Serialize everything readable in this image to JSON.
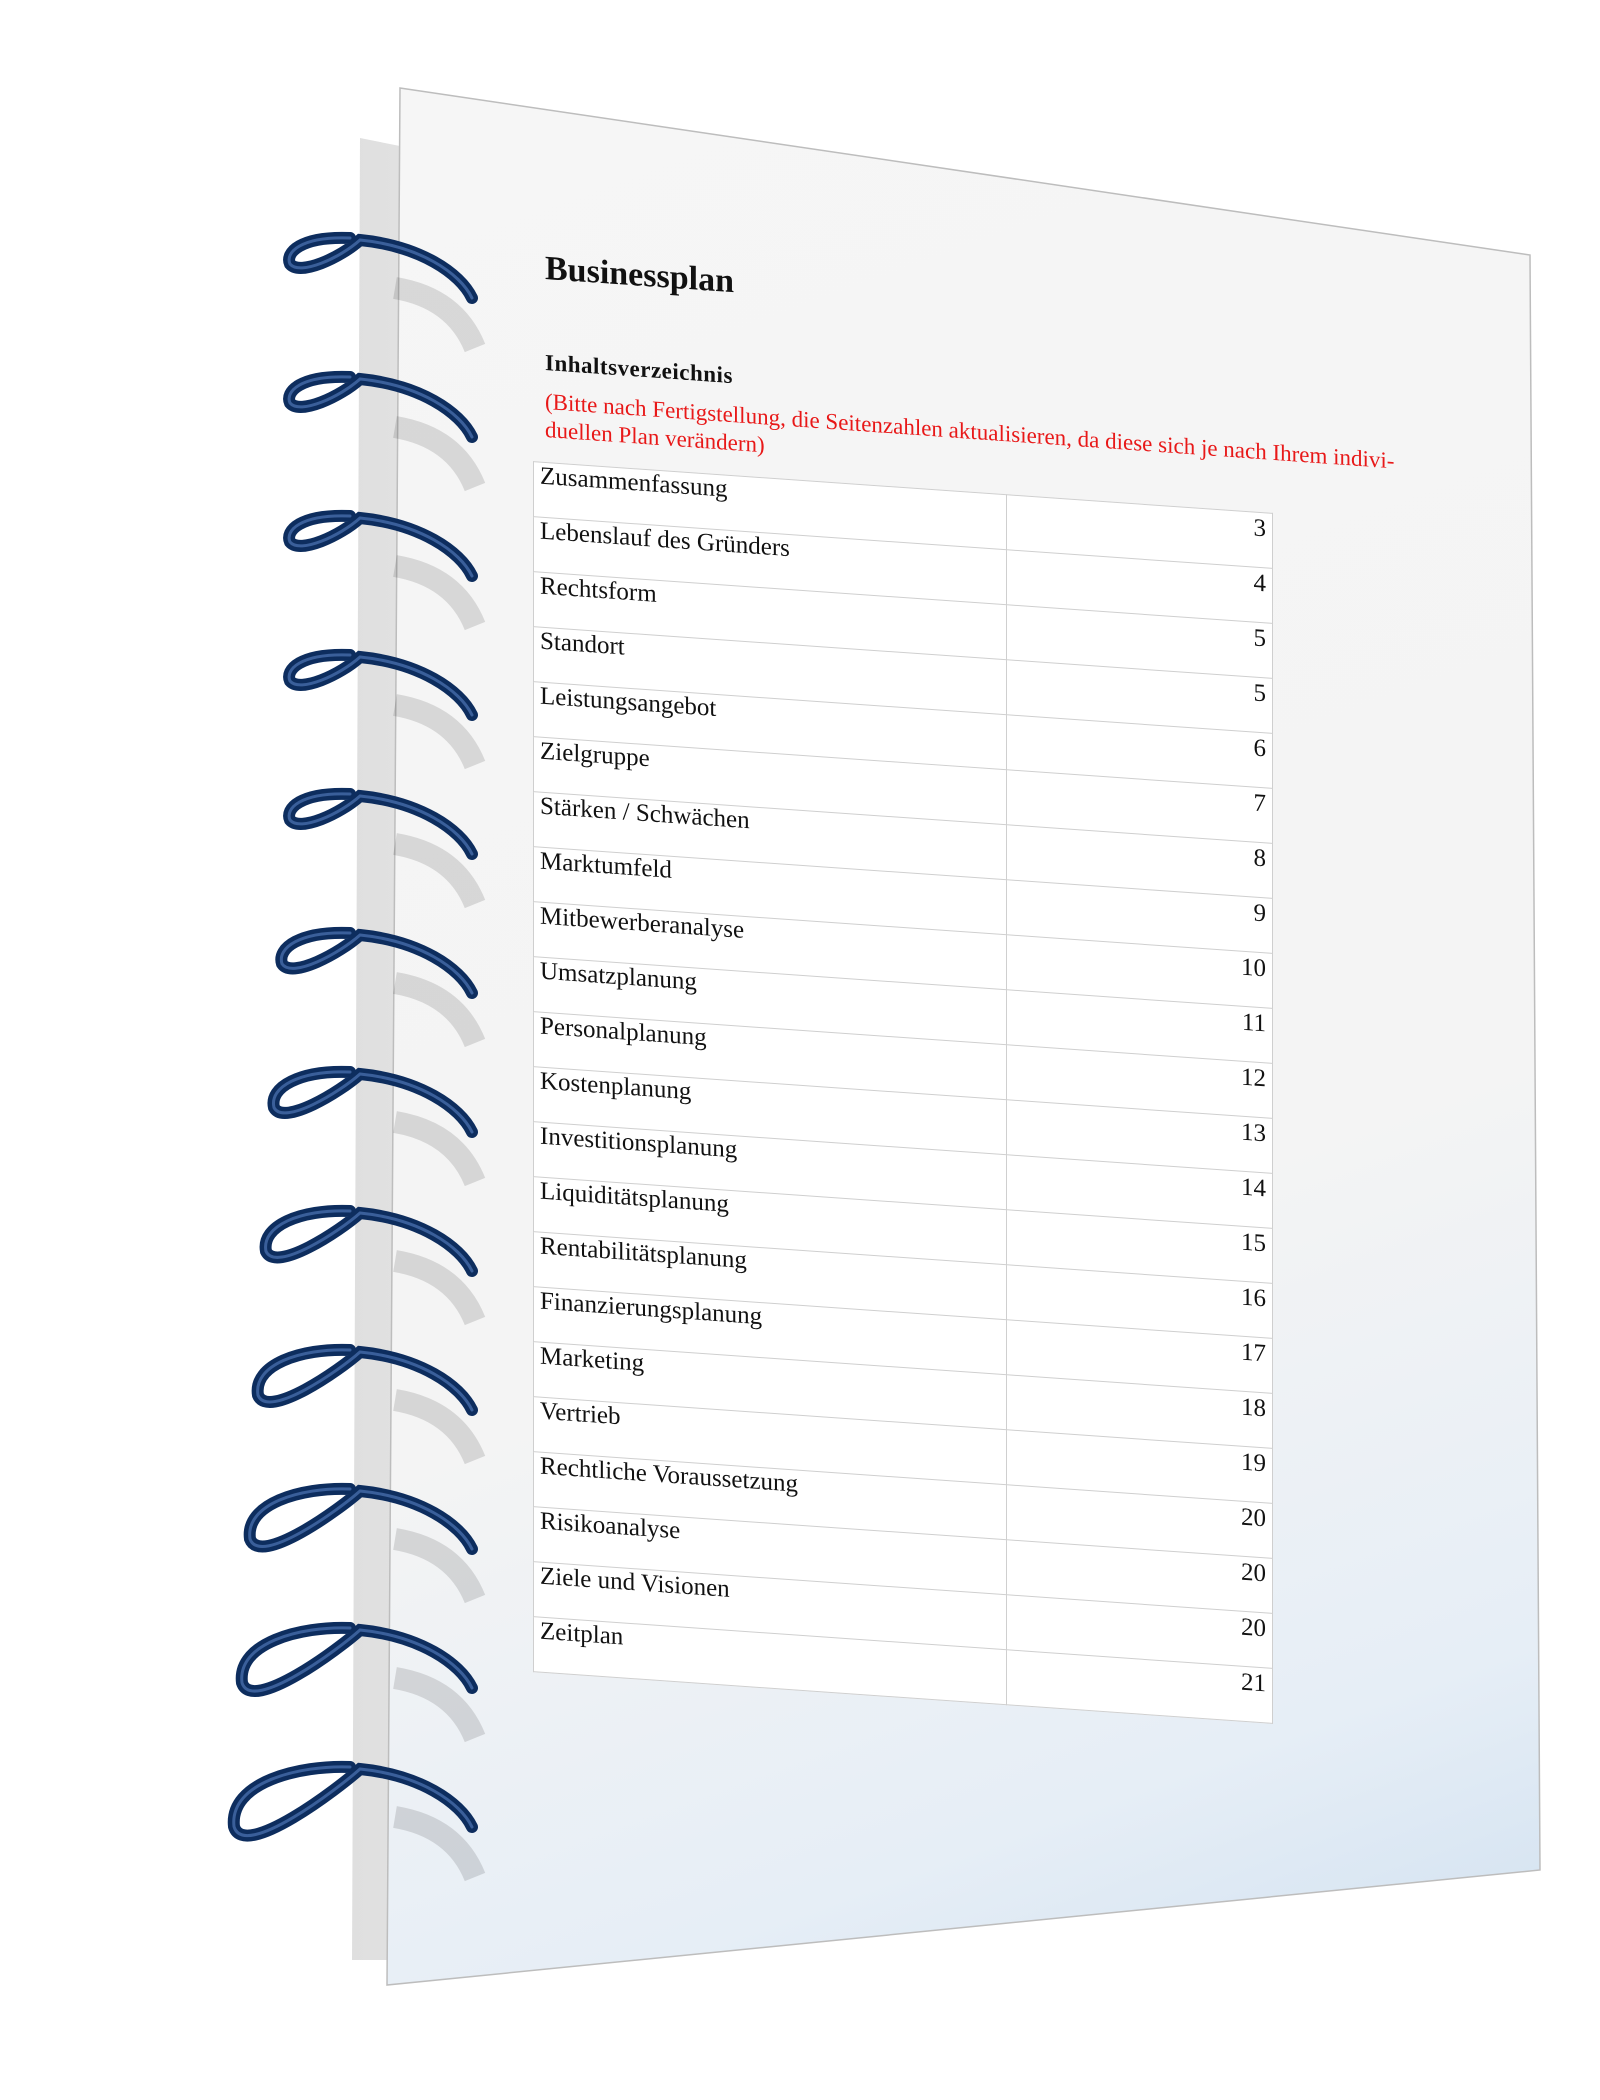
{
  "document": {
    "title": "Businessplan",
    "toc_heading": "Inhaltsverzeichnis",
    "note": "(Bitte nach Fertigstellung, die Seitenzahlen aktualisieren, da diese sich je nach Ihrem indivi-duellen Plan verändern)",
    "toc": [
      {
        "label": "Zusammenfassung",
        "page": "3"
      },
      {
        "label": "Lebenslauf des Gründers",
        "page": "4"
      },
      {
        "label": "Rechtsform",
        "page": "5"
      },
      {
        "label": "Standort",
        "page": "5"
      },
      {
        "label": "Leistungsangebot",
        "page": "6"
      },
      {
        "label": "Zielgruppe",
        "page": "7"
      },
      {
        "label": "Stärken / Schwächen",
        "page": "8"
      },
      {
        "label": "Marktumfeld",
        "page": "9"
      },
      {
        "label": "Mitbewerberanalyse",
        "page": "10"
      },
      {
        "label": "Umsatzplanung",
        "page": "11"
      },
      {
        "label": "Personalplanung",
        "page": "12"
      },
      {
        "label": "Kostenplanung",
        "page": "13"
      },
      {
        "label": "Investitionsplanung",
        "page": "14"
      },
      {
        "label": "Liquiditätsplanung",
        "page": "15"
      },
      {
        "label": "Rentabilitätsplanung",
        "page": "16"
      },
      {
        "label": "Finanzierungsplanung",
        "page": "17"
      },
      {
        "label": "Marketing",
        "page": "18"
      },
      {
        "label": "Vertrieb",
        "page": "19"
      },
      {
        "label": "Rechtliche Voraussetzung",
        "page": "20"
      },
      {
        "label": "Risikoanalyse",
        "page": "20"
      },
      {
        "label": "Ziele und Visionen",
        "page": "20"
      },
      {
        "label": "Zeitplan",
        "page": "21"
      }
    ]
  },
  "colors": {
    "note": "#e81818",
    "spiral": "#0d2d5e",
    "text": "#111111"
  },
  "icons": {
    "binding": "spiral-binding-icon"
  }
}
